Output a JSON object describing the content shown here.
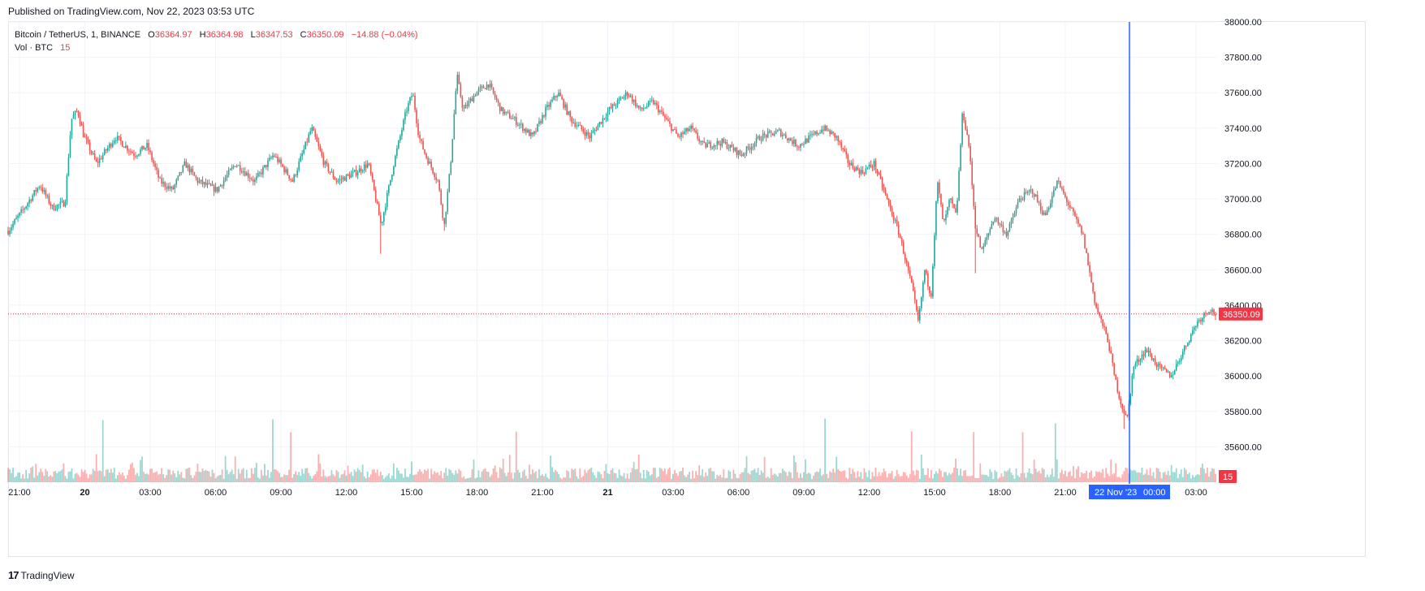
{
  "header": {
    "published": "Published on TradingView.com, Nov 22, 2023 03:53 UTC"
  },
  "legend": {
    "symbol": "Bitcoin / TetherUS, 1, BINANCE",
    "open_label": "O",
    "open": "36364.97",
    "high_label": "H",
    "high": "36364.98",
    "low_label": "L",
    "low": "36347.53",
    "close_label": "C",
    "close": "36350.09",
    "change": "−14.88 (−0.04%)",
    "vol_label": "Vol · BTC",
    "vol_value": "15"
  },
  "footer": {
    "logo_mark": "17",
    "logo_text": "TradingView"
  },
  "colors": {
    "up": "#26a69a",
    "down": "#ef5350",
    "crosshair": "#2962ff",
    "last_price": "#f23645",
    "grid": "#f0f3fa"
  },
  "chart_data": {
    "type": "candlestick",
    "title": "Bitcoin / TetherUS, 1, BINANCE",
    "y_ticks": [
      "35600.00",
      "35800.00",
      "36000.00",
      "36200.00",
      "36400.00",
      "36600.00",
      "36800.00",
      "37000.00",
      "37200.00",
      "37400.00",
      "37600.00",
      "37800.00",
      "38000.00"
    ],
    "x_ticks": [
      "21:00",
      "20",
      "03:00",
      "06:00",
      "09:00",
      "12:00",
      "15:00",
      "18:00",
      "21:00",
      "21",
      "03:00",
      "06:00",
      "09:00",
      "12:00",
      "15:00",
      "18:00",
      "21:00",
      "00:00",
      "03:00"
    ],
    "ylim": [
      35400,
      38000
    ],
    "last_price": 36350.09,
    "last_price_label": "36350.09",
    "volume_label": "15",
    "crosshair_label_date": "22 Nov '23",
    "crosshair_label_time": "00:00",
    "price_path": [
      [
        0,
        36820
      ],
      [
        2,
        36920
      ],
      [
        5,
        37080
      ],
      [
        7,
        36950
      ],
      [
        9,
        36980
      ],
      [
        10,
        37450
      ],
      [
        11,
        37500
      ],
      [
        12,
        37350
      ],
      [
        14,
        37200
      ],
      [
        17,
        37350
      ],
      [
        20,
        37250
      ],
      [
        22,
        37300
      ],
      [
        24,
        37100
      ],
      [
        26,
        37050
      ],
      [
        28,
        37200
      ],
      [
        30,
        37100
      ],
      [
        33,
        37050
      ],
      [
        36,
        37200
      ],
      [
        39,
        37100
      ],
      [
        42,
        37250
      ],
      [
        45,
        37100
      ],
      [
        48,
        37400
      ],
      [
        50,
        37200
      ],
      [
        52,
        37100
      ],
      [
        55,
        37150
      ],
      [
        57,
        37200
      ],
      [
        59,
        36850
      ],
      [
        61,
        37200
      ],
      [
        63,
        37500
      ],
      [
        64,
        37600
      ],
      [
        65,
        37350
      ],
      [
        66,
        37250
      ],
      [
        68,
        37100
      ],
      [
        69,
        36850
      ],
      [
        70,
        37200
      ],
      [
        71,
        37700
      ],
      [
        72,
        37500
      ],
      [
        74,
        37600
      ],
      [
        76,
        37650
      ],
      [
        78,
        37500
      ],
      [
        80,
        37450
      ],
      [
        83,
        37350
      ],
      [
        85,
        37500
      ],
      [
        87,
        37600
      ],
      [
        89,
        37450
      ],
      [
        92,
        37350
      ],
      [
        95,
        37500
      ],
      [
        98,
        37600
      ],
      [
        100,
        37500
      ],
      [
        102,
        37550
      ],
      [
        104,
        37450
      ],
      [
        106,
        37350
      ],
      [
        108,
        37400
      ],
      [
        110,
        37300
      ],
      [
        113,
        37320
      ],
      [
        116,
        37250
      ],
      [
        119,
        37350
      ],
      [
        122,
        37380
      ],
      [
        125,
        37300
      ],
      [
        127,
        37350
      ],
      [
        129,
        37400
      ],
      [
        131,
        37350
      ],
      [
        133,
        37200
      ],
      [
        135,
        37150
      ],
      [
        137,
        37200
      ],
      [
        139,
        37000
      ],
      [
        141,
        36800
      ],
      [
        143,
        36500
      ],
      [
        144,
        36300
      ],
      [
        145,
        36600
      ],
      [
        146,
        36450
      ],
      [
        147,
        37100
      ],
      [
        148,
        36850
      ],
      [
        149,
        37000
      ],
      [
        150,
        36900
      ],
      [
        151,
        37500
      ],
      [
        152,
        37300
      ],
      [
        153,
        36850
      ],
      [
        154,
        36700
      ],
      [
        156,
        36900
      ],
      [
        158,
        36800
      ],
      [
        160,
        37000
      ],
      [
        162,
        37050
      ],
      [
        164,
        36900
      ],
      [
        166,
        37100
      ],
      [
        168,
        36950
      ],
      [
        170,
        36800
      ],
      [
        172,
        36400
      ],
      [
        174,
        36200
      ],
      [
        175,
        36000
      ],
      [
        176,
        35850
      ],
      [
        177,
        35750
      ],
      [
        178,
        36050
      ],
      [
        180,
        36150
      ],
      [
        182,
        36050
      ],
      [
        184,
        36000
      ],
      [
        186,
        36150
      ],
      [
        188,
        36300
      ],
      [
        190,
        36380
      ],
      [
        191,
        36350
      ]
    ],
    "x_range": [
      0,
      191
    ]
  }
}
